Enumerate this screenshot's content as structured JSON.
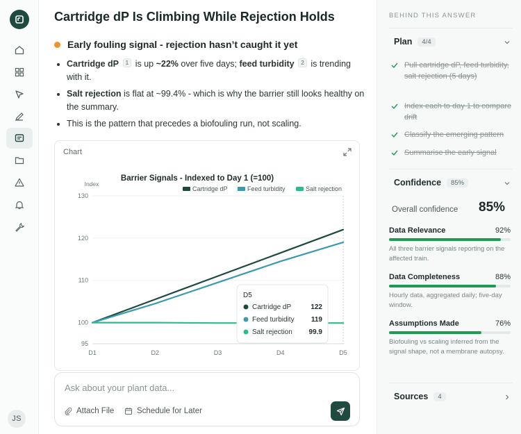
{
  "header": {
    "title": "Cartridge dP Is Climbing While Rejection Holds"
  },
  "signal": {
    "text": "Early fouling signal - rejection hasn’t caught it yet",
    "color": "#f0922b"
  },
  "bullets": {
    "b1": {
      "k1": "Cartridge dP",
      "c1": "1",
      "mid1": " is up ",
      "val": "~22%",
      "mid2": " over five days; ",
      "k2": "feed turbidity",
      "c2": "2",
      "end": " is trending with it."
    },
    "b2": {
      "k": "Salt rejection",
      "rest": " is flat at ~99.4% - which is why the barrier still looks healthy on the summary."
    },
    "b3": {
      "text": "This is the pattern that precedes a biofouling run, not scaling."
    }
  },
  "chart_card": {
    "label": "Chart"
  },
  "chart_data": {
    "type": "line",
    "title": "Barrier Signals - Indexed to Day 1 (=100)",
    "ylabel": "Index",
    "xlabel": "",
    "categories": [
      "D1",
      "D2",
      "D3",
      "D4",
      "D5"
    ],
    "yticks": [
      95,
      100,
      110,
      120,
      130
    ],
    "ylim": [
      95,
      130
    ],
    "legend_position": "top-right",
    "series": [
      {
        "name": "Cartridge dP",
        "values": [
          100,
          105.5,
          111,
          116.5,
          122
        ],
        "color": "#1b4a3c"
      },
      {
        "name": "Feed turbidity",
        "values": [
          100,
          104.5,
          109.5,
          114.5,
          119
        ],
        "color": "#3a9aaf"
      },
      {
        "name": "Salt rejection",
        "values": [
          100,
          100,
          99.9,
          99.9,
          99.9
        ],
        "color": "#2cbc8a"
      }
    ],
    "tooltip": {
      "title": "D5",
      "rows": [
        {
          "label": "Cartridge dP",
          "value": "122"
        },
        {
          "label": "Feed turbidity",
          "value": "119"
        },
        {
          "label": "Salt rejection",
          "value": "99.9"
        }
      ]
    }
  },
  "composer": {
    "placeholder": "Ask about your plant data...",
    "attach": "Attach File",
    "schedule": "Schedule for Later"
  },
  "user": {
    "initials": "JS"
  },
  "panel": {
    "title": "BEHIND THIS ANSWER",
    "plan": {
      "label": "Plan",
      "count": "4/4",
      "steps": [
        "Pull cartridge dP, feed turbidity, salt rejection (5 days)",
        "Index each to day 1 to compare drift",
        "Classify the emerging pattern",
        "Summarise the early signal"
      ]
    },
    "confidence": {
      "label": "Confidence",
      "badge": "85%",
      "overall_label": "Overall confidence",
      "overall_value": "85%",
      "metrics": [
        {
          "name": "Data Relevance",
          "value": "92%",
          "level": 0.92,
          "note": "All three barrier signals reporting on the affected train."
        },
        {
          "name": "Data Completeness",
          "value": "88%",
          "level": 0.88,
          "note": "Hourly data, aggregated daily; five-day window."
        },
        {
          "name": "Assumptions Made",
          "value": "76%",
          "level": 0.76,
          "note": "Biofouling vs scaling inferred from the signal shape, not a membrane autopsy."
        }
      ]
    },
    "sources": {
      "label": "Sources",
      "count": "4"
    }
  },
  "colors": {
    "brand": "#1e4a3f",
    "success": "#1f9a55",
    "accent": "#f0922b"
  }
}
